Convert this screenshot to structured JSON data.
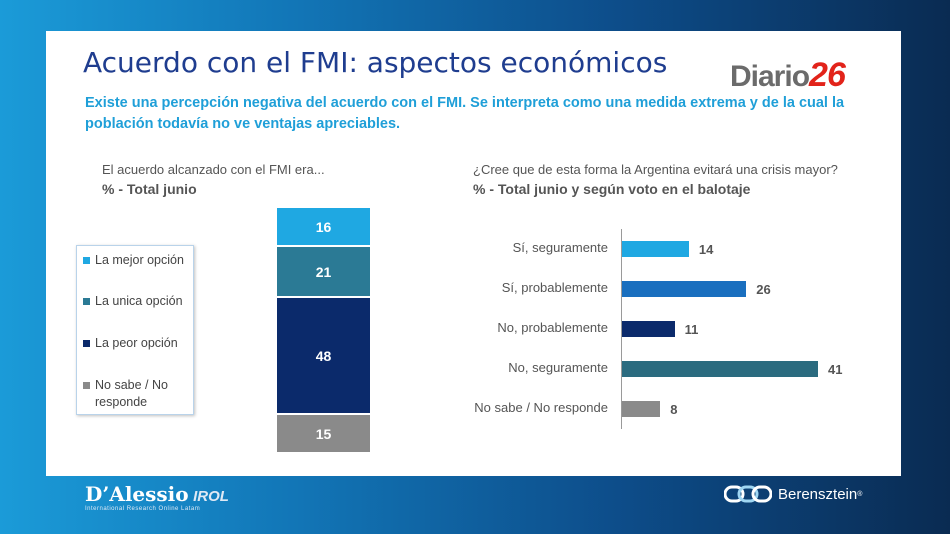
{
  "slide": {
    "title": "Acuerdo con el FMI: aspectos económicos",
    "subtitle": "Existe una percepción negativa del acuerdo con el FMI. Se interpreta como una medida extrema y de la cual la población todavía no ve ventajas apreciables.",
    "logo": {
      "text": "Diario",
      "number": "26"
    }
  },
  "footer": {
    "left_brand": "D’Alessio",
    "left_suffix": "IROL",
    "left_tagline": "International Research Online Latam",
    "right_brand": "Berensztein",
    "right_mark": "®"
  },
  "chart_data": [
    {
      "type": "bar",
      "stacked": true,
      "title": "El acuerdo alcanzado con el FMI era...",
      "subtitle": "% - Total junio",
      "legend_position": "left",
      "series": [
        {
          "name": "La mejor opción",
          "values": [
            16
          ],
          "color": "#1fa8e2"
        },
        {
          "name": "La unica opción",
          "values": [
            21
          ],
          "color": "#2b7a95"
        },
        {
          "name": "La peor opción",
          "values": [
            48
          ],
          "color": "#0b2a6b"
        },
        {
          "name": "No sabe / No responde",
          "values": [
            15
          ],
          "color": "#8a8a8a"
        }
      ],
      "value_labels": [
        "16",
        "21",
        "48",
        "15"
      ]
    },
    {
      "type": "bar",
      "orientation": "horizontal",
      "title": "¿Cree que de esta forma la Argentina evitará una crisis mayor?",
      "subtitle": "% - Total junio y según voto en el balotaje",
      "categories": [
        "Sí, seguramente",
        "Sí, probablemente",
        "No, probablemente",
        "No, seguramente",
        "No sabe / No responde"
      ],
      "values": [
        14,
        26,
        11,
        41,
        8
      ],
      "value_labels": [
        "14",
        "26",
        "11",
        "41",
        "8"
      ],
      "colors": [
        "#1fa8e2",
        "#1a6fbf",
        "#0b2a6b",
        "#2b6b7f",
        "#8a8a8a"
      ],
      "xlim": [
        0,
        45
      ]
    }
  ]
}
